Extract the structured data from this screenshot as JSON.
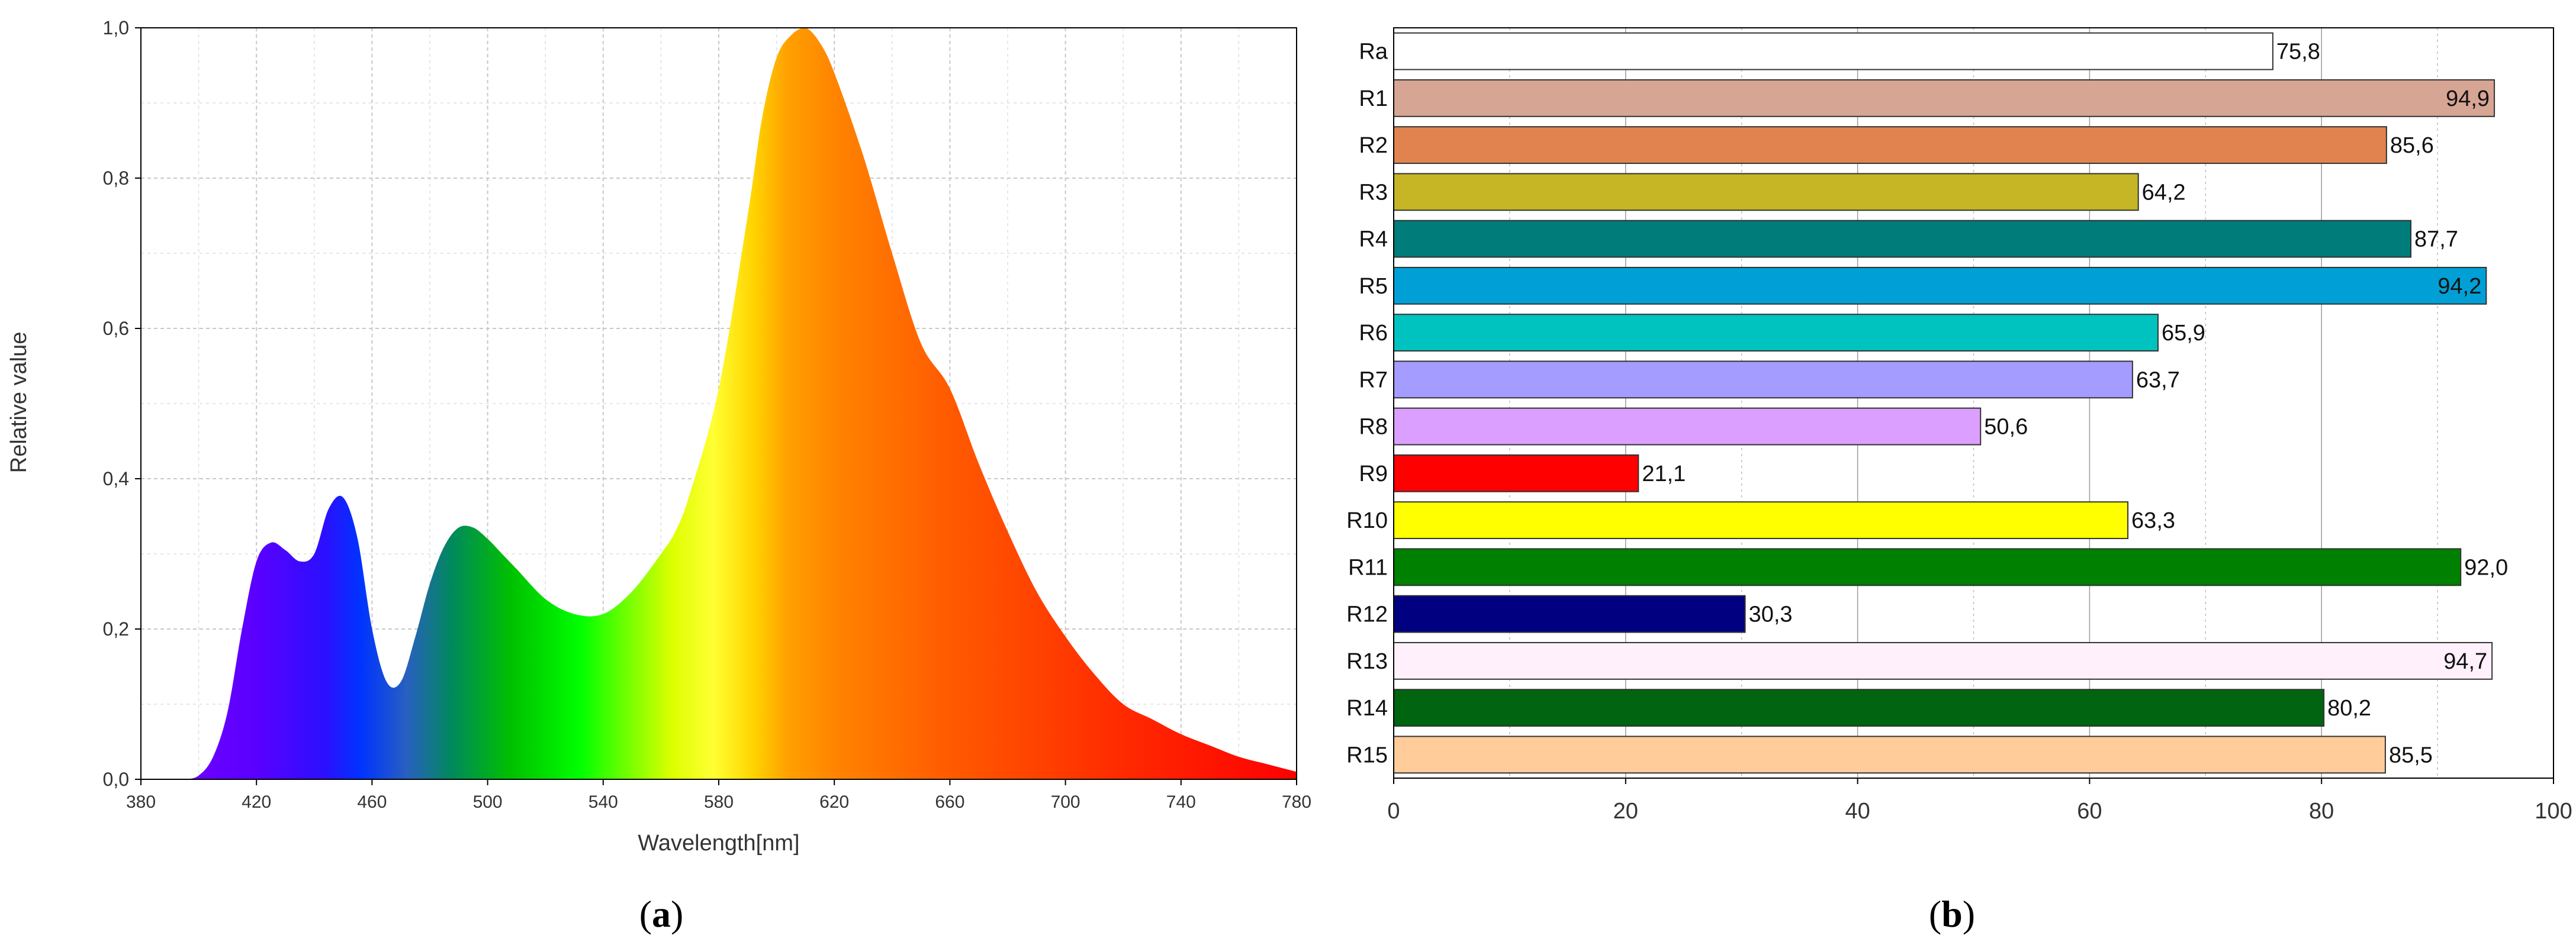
{
  "panel_labels": {
    "a": "a",
    "b": "b"
  },
  "chart_data": [
    {
      "type": "area",
      "xlabel": "Wavelength[nm]",
      "ylabel": "Relative value",
      "xlim": [
        380,
        780
      ],
      "ylim": [
        0,
        1.0
      ],
      "x_ticks": [
        "380",
        "420",
        "460",
        "500",
        "540",
        "580",
        "620",
        "660",
        "700",
        "740",
        "780"
      ],
      "y_ticks": [
        "0,0",
        "0,2",
        "0,4",
        "0,6",
        "0,8",
        "1,0"
      ],
      "grid": true,
      "fill": "visible-spectrum gradient",
      "x": [
        380,
        390,
        395,
        400,
        405,
        410,
        415,
        420,
        425,
        430,
        435,
        440,
        445,
        450,
        455,
        460,
        465,
        470,
        475,
        480,
        485,
        490,
        495,
        500,
        505,
        510,
        520,
        530,
        540,
        550,
        560,
        565,
        570,
        580,
        590,
        595,
        600,
        605,
        610,
        615,
        620,
        630,
        640,
        650,
        660,
        670,
        680,
        690,
        700,
        710,
        720,
        730,
        740,
        750,
        760,
        770,
        780
      ],
      "y": [
        0.0,
        0.0,
        0.0,
        0.005,
        0.03,
        0.09,
        0.2,
        0.29,
        0.315,
        0.305,
        0.29,
        0.3,
        0.36,
        0.375,
        0.32,
        0.2,
        0.13,
        0.13,
        0.19,
        0.26,
        0.31,
        0.335,
        0.335,
        0.32,
        0.3,
        0.28,
        0.24,
        0.22,
        0.22,
        0.25,
        0.3,
        0.33,
        0.38,
        0.52,
        0.75,
        0.88,
        0.96,
        0.99,
        1.0,
        0.98,
        0.94,
        0.83,
        0.7,
        0.58,
        0.52,
        0.42,
        0.33,
        0.25,
        0.19,
        0.14,
        0.1,
        0.08,
        0.06,
        0.045,
        0.03,
        0.02,
        0.01
      ]
    },
    {
      "type": "bar",
      "orientation": "horizontal",
      "categories": [
        "Ra",
        "R1",
        "R2",
        "R3",
        "R4",
        "R5",
        "R6",
        "R7",
        "R8",
        "R9",
        "R10",
        "R11",
        "R12",
        "R13",
        "R14",
        "R15"
      ],
      "values": [
        75.8,
        94.9,
        85.6,
        64.2,
        87.7,
        94.2,
        65.9,
        63.7,
        50.6,
        21.1,
        63.3,
        92.0,
        30.3,
        94.7,
        80.2,
        85.5
      ],
      "value_labels": [
        "75,8",
        "94,9",
        "85,6",
        "64,2",
        "87,7",
        "94,2",
        "65,9",
        "63,7",
        "50,6",
        "21,1",
        "63,3",
        "92,0",
        "30,3",
        "94,7",
        "80,2",
        "85,5"
      ],
      "colors": [
        "#ffffff",
        "#d7a593",
        "#e0834f",
        "#c6b524",
        "#007c7a",
        "#00a0d6",
        "#00c3c0",
        "#a59cff",
        "#dba0ff",
        "#ff0000",
        "#ffff00",
        "#008000",
        "#000080",
        "#fff0fb",
        "#006410",
        "#ffcc9a"
      ],
      "xlim": [
        0,
        100
      ],
      "x_ticks": [
        "0",
        "20",
        "40",
        "60",
        "80",
        "100"
      ],
      "grid": true
    }
  ]
}
